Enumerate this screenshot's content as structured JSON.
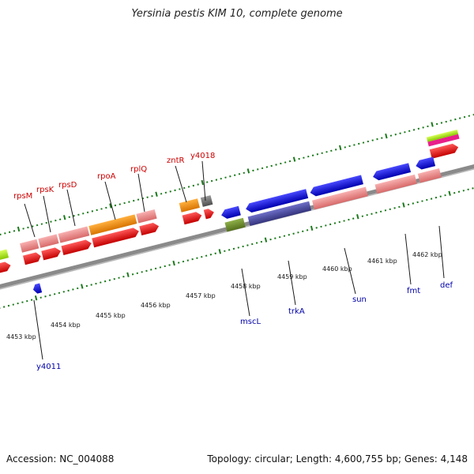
{
  "title": "Yersinia pestis KIM 10, complete genome",
  "accession_label": "Accession: NC_004088",
  "summary_label": "Topology: circular; Length: 4,600,755 bp; Genes: 4,148",
  "kbp_ticks": [
    "4453 kbp",
    "4454 kbp",
    "4455 kbp",
    "4456 kbp",
    "4457 kbp",
    "4458 kbp",
    "4459 kbp",
    "4460 kbp",
    "4461 kbp",
    "4462 kbp"
  ],
  "forward_gene_labels": [
    "rpsM",
    "rpsK",
    "rpsD",
    "rpoA",
    "rplQ",
    "zntR",
    "y4018"
  ],
  "reverse_gene_labels": [
    "y4011",
    "mscL",
    "trkA",
    "sun",
    "fmt",
    "def"
  ],
  "colors": {
    "forward_gene": "#ee1111",
    "forward_cds_pale": "#f08a8a",
    "forward_cds_orange": "#f0900a",
    "gray_cds": "#707070",
    "reverse_gene": "#1818e0",
    "reverse_cds_navy": "#4a4aa8",
    "reverse_cds_olive": "#6f8f2a",
    "forward_label": "#cc0000",
    "reverse_label": "#0000aa",
    "tick_green": "#1a7a1a",
    "backbone": "#8a8a8a"
  }
}
